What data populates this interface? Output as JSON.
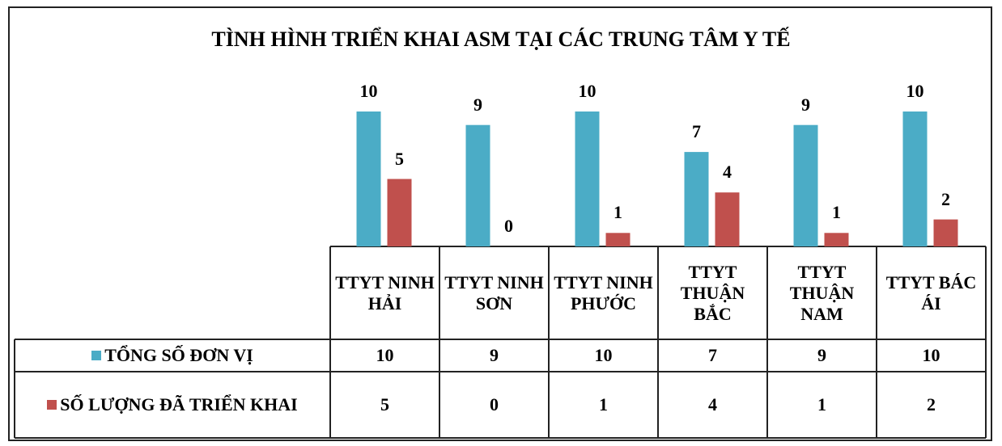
{
  "chart_data": {
    "type": "bar",
    "title": "TÌNH HÌNH TRIỂN KHAI ASM TẠI CÁC TRUNG TÂM Y TẾ",
    "categories": [
      "TTYT NINH HẢI",
      "TTYT NINH SƠN",
      "TTYT NINH PHƯỚC",
      "TTYT THUẬN BẮC",
      "TTYT THUẬN NAM",
      "TTYT BÁC ÁI"
    ],
    "series": [
      {
        "name": "TỔNG SỐ ĐƠN VỊ",
        "color": "#4bacc6",
        "values": [
          10,
          9,
          10,
          7,
          9,
          10
        ]
      },
      {
        "name": "SỐ LƯỢNG ĐÃ TRIỂN KHAI",
        "color": "#c0504d",
        "values": [
          5,
          0,
          1,
          4,
          1,
          2
        ]
      }
    ],
    "data_table": true
  }
}
